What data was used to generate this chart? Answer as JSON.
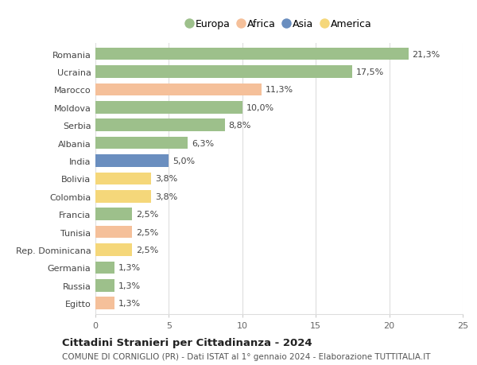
{
  "countries": [
    "Romania",
    "Ucraina",
    "Marocco",
    "Moldova",
    "Serbia",
    "Albania",
    "India",
    "Bolivia",
    "Colombia",
    "Francia",
    "Tunisia",
    "Rep. Dominicana",
    "Germania",
    "Russia",
    "Egitto"
  ],
  "values": [
    21.3,
    17.5,
    11.3,
    10.0,
    8.8,
    6.3,
    5.0,
    3.8,
    3.8,
    2.5,
    2.5,
    2.5,
    1.3,
    1.3,
    1.3
  ],
  "labels": [
    "21,3%",
    "17,5%",
    "11,3%",
    "10,0%",
    "8,8%",
    "6,3%",
    "5,0%",
    "3,8%",
    "3,8%",
    "2,5%",
    "2,5%",
    "2,5%",
    "1,3%",
    "1,3%",
    "1,3%"
  ],
  "continents": [
    "Europa",
    "Europa",
    "Africa",
    "Europa",
    "Europa",
    "Europa",
    "Asia",
    "America",
    "America",
    "Europa",
    "Africa",
    "America",
    "Europa",
    "Europa",
    "Africa"
  ],
  "colors": {
    "Europa": "#9dc08b",
    "Africa": "#f5c09a",
    "Asia": "#6a8ebf",
    "America": "#f5d77a"
  },
  "legend_order": [
    "Europa",
    "Africa",
    "Asia",
    "America"
  ],
  "xlim": [
    0,
    25
  ],
  "xticks": [
    0,
    5,
    10,
    15,
    20,
    25
  ],
  "title": "Cittadini Stranieri per Cittadinanza - 2024",
  "subtitle": "COMUNE DI CORNIGLIO (PR) - Dati ISTAT al 1° gennaio 2024 - Elaborazione TUTTITALIA.IT",
  "bg_color": "#ffffff",
  "grid_color": "#dddddd",
  "bar_height": 0.7,
  "label_fontsize": 8,
  "ytick_fontsize": 8,
  "xtick_fontsize": 8,
  "title_fontsize": 9.5,
  "subtitle_fontsize": 7.5,
  "legend_fontsize": 9
}
